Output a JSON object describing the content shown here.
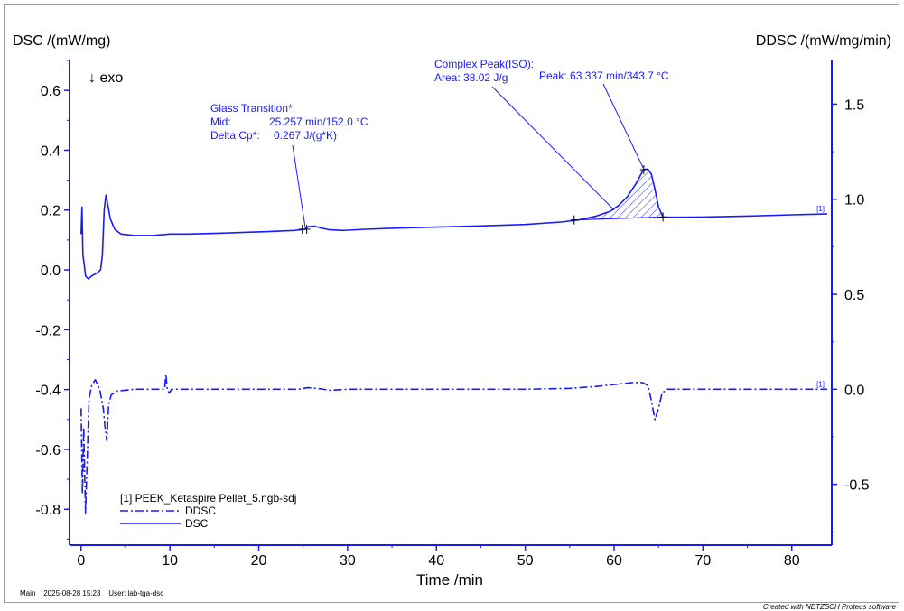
{
  "chart_data": {
    "type": "line",
    "ylabel_left": "DSC /(mW/mg)",
    "ylabel_right": "DDSC /(mW/mg/min)",
    "xlabel": "Time /min",
    "exo_label": "↓ exo",
    "xlim": [
      -1.3,
      84.5
    ],
    "xticks": [
      "0",
      "10",
      "20",
      "30",
      "40",
      "50",
      "60",
      "70",
      "80"
    ],
    "ylim_left": [
      -0.92,
      0.7
    ],
    "yticks_left": [
      "0.6",
      "0.4",
      "0.2",
      "0.0",
      "-0.2",
      "-0.4",
      "-0.6",
      "-0.8"
    ],
    "ylim_right": [
      -0.82,
      1.73
    ],
    "yticks_right": [
      "1.5",
      "1.0",
      "0.5",
      "0.0",
      "-0.5"
    ],
    "grid": false,
    "legend_position": "bottom-left",
    "legend_title": "[1]  PEEK_Ketaspire Pellet_5.ngb-sdj",
    "series": [
      {
        "name": "DSC",
        "axis": "left",
        "style": "solid",
        "color": "#1a1aff",
        "tag": "[1]",
        "points": [
          [
            0,
            0.12
          ],
          [
            0.1,
            0.21
          ],
          [
            0.2,
            0.05
          ],
          [
            0.35,
            0.02
          ],
          [
            0.5,
            -0.02
          ],
          [
            0.8,
            -0.03
          ],
          [
            1.2,
            -0.02
          ],
          [
            1.8,
            -0.01
          ],
          [
            2.2,
            0.0
          ],
          [
            2.4,
            0.05
          ],
          [
            2.6,
            0.2
          ],
          [
            2.8,
            0.25
          ],
          [
            3.0,
            0.22
          ],
          [
            3.3,
            0.17
          ],
          [
            3.8,
            0.135
          ],
          [
            4.5,
            0.12
          ],
          [
            6,
            0.115
          ],
          [
            8,
            0.115
          ],
          [
            10,
            0.12
          ],
          [
            12,
            0.12
          ],
          [
            15,
            0.122
          ],
          [
            18,
            0.125
          ],
          [
            21,
            0.128
          ],
          [
            24,
            0.132
          ],
          [
            25.2,
            0.136
          ],
          [
            25.6,
            0.145
          ],
          [
            26.3,
            0.146
          ],
          [
            27,
            0.14
          ],
          [
            28,
            0.134
          ],
          [
            29.5,
            0.132
          ],
          [
            32,
            0.136
          ],
          [
            36,
            0.14
          ],
          [
            40,
            0.143
          ],
          [
            45,
            0.147
          ],
          [
            50,
            0.152
          ],
          [
            54,
            0.16
          ],
          [
            56,
            0.167
          ],
          [
            58,
            0.18
          ],
          [
            59.5,
            0.195
          ],
          [
            60.5,
            0.215
          ],
          [
            61.5,
            0.245
          ],
          [
            62.5,
            0.29
          ],
          [
            63.3,
            0.335
          ],
          [
            63.8,
            0.337
          ],
          [
            64.2,
            0.32
          ],
          [
            64.6,
            0.27
          ],
          [
            65,
            0.21
          ],
          [
            65.5,
            0.177
          ],
          [
            66.5,
            0.176
          ],
          [
            70,
            0.177
          ],
          [
            75,
            0.18
          ],
          [
            80,
            0.184
          ],
          [
            84,
            0.187
          ]
        ]
      },
      {
        "name": "DDSC",
        "axis": "right",
        "style": "dashdot",
        "color": "#1a1aff",
        "tag": "[1]",
        "points": [
          [
            0,
            -0.1
          ],
          [
            0.15,
            -0.55
          ],
          [
            0.3,
            -0.2
          ],
          [
            0.5,
            -0.65
          ],
          [
            0.7,
            -0.35
          ],
          [
            0.9,
            -0.05
          ],
          [
            1.2,
            0.02
          ],
          [
            1.6,
            0.05
          ],
          [
            1.9,
            0.02
          ],
          [
            2.1,
            0.0
          ],
          [
            2.3,
            -0.05
          ],
          [
            2.5,
            -0.1
          ],
          [
            2.7,
            -0.2
          ],
          [
            2.9,
            -0.27
          ],
          [
            3.1,
            -0.08
          ],
          [
            3.4,
            -0.03
          ],
          [
            4,
            -0.01
          ],
          [
            6,
            0.0
          ],
          [
            9.4,
            0.0
          ],
          [
            9.55,
            0.08
          ],
          [
            9.7,
            0.0
          ],
          [
            9.9,
            -0.02
          ],
          [
            10.2,
            0.0
          ],
          [
            15,
            0.0
          ],
          [
            20,
            0.0
          ],
          [
            24.5,
            0.0
          ],
          [
            25.5,
            0.008
          ],
          [
            26.5,
            0.005
          ],
          [
            28,
            -0.005
          ],
          [
            30,
            0.0
          ],
          [
            40,
            0.0
          ],
          [
            50,
            0.0
          ],
          [
            55,
            0.005
          ],
          [
            58,
            0.015
          ],
          [
            60,
            0.025
          ],
          [
            62,
            0.035
          ],
          [
            63.2,
            0.035
          ],
          [
            63.8,
            0.02
          ],
          [
            64.2,
            -0.06
          ],
          [
            64.6,
            -0.16
          ],
          [
            65,
            -0.1
          ],
          [
            65.4,
            -0.02
          ],
          [
            66,
            0.0
          ],
          [
            70,
            0.0
          ],
          [
            80,
            0.0
          ],
          [
            84,
            0.0
          ]
        ]
      }
    ],
    "annotations": {
      "glass_transition": {
        "title": "Glass Transition*:",
        "mid_label": "Mid:",
        "mid_value": "25.257 min/152.0 °C",
        "cp_label": "Delta Cp*:",
        "cp_value": "0.267 J/(g*K)",
        "anchor": [
          25.257,
          0.138
        ]
      },
      "complex_peak": {
        "title": "Complex Peak(ISO):",
        "area": "Area:  38.02 J/g",
        "peak": "Peak: 63.337 min/343.7 °C",
        "peak_anchor": [
          63.337,
          0.337
        ],
        "area_anchor": [
          60,
          0.2
        ],
        "range": [
          55.5,
          65.5
        ]
      }
    }
  },
  "footer": {
    "left_text": "Main    2025-08-28 15:23    User: lab-tga-dsc",
    "right_text": "Created with NETZSCH Proteus software"
  }
}
